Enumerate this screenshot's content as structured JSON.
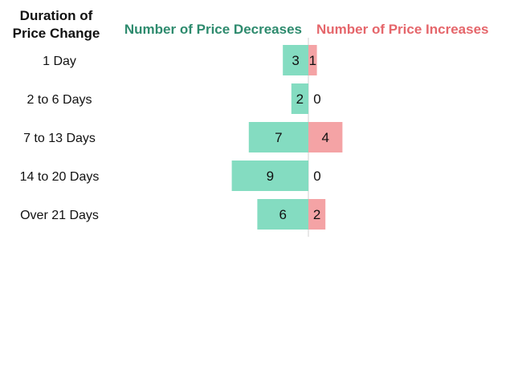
{
  "chart_data": {
    "type": "bar",
    "orientation": "horizontal-diverging",
    "row_header": [
      "Duration of",
      "Price Change"
    ],
    "categories": [
      "1 Day",
      "2 to 6 Days",
      "7 to 13 Days",
      "14 to 20 Days",
      "Over 21 Days"
    ],
    "series": [
      {
        "name": "Number of Price Decreases",
        "values": [
          3,
          2,
          7,
          9,
          6
        ],
        "color": "#84dcc1",
        "text_color": "#2e8b6e",
        "direction": "left"
      },
      {
        "name": "Number of Price Increases",
        "values": [
          1,
          0,
          4,
          0,
          2
        ],
        "color": "#f4a3a5",
        "text_color": "#e5666b",
        "direction": "right"
      }
    ],
    "grid": false,
    "legend": "top"
  }
}
